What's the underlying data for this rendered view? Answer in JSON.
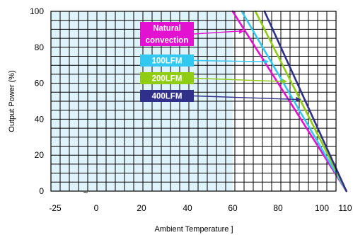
{
  "chart_data": {
    "type": "line",
    "xlabel": "Ambient Temperature  ]",
    "ylabel": "Output Power  (%)",
    "x_ticks": [
      "-25",
      "0",
      "20",
      "40",
      "60",
      "80",
      "100",
      "110"
    ],
    "y_ticks": [
      "0",
      "20",
      "40",
      "60",
      "80",
      "100"
    ],
    "x_break_mark": "~",
    "xlim": [
      -25,
      110
    ],
    "ylim": [
      0,
      100
    ],
    "grid": true,
    "shaded_region_x": [
      -25,
      60
    ],
    "shaded_color": "#dff3fc",
    "series": [
      {
        "name": "Natural convection",
        "color": "#e312d0",
        "x": [
          60,
          110
        ],
        "y": [
          100,
          0
        ]
      },
      {
        "name": "100LFM",
        "color": "#32c8f0",
        "x": [
          64,
          110
        ],
        "y": [
          100,
          0
        ]
      },
      {
        "name": "200LFM",
        "color": "#90cc14",
        "x": [
          70,
          110
        ],
        "y": [
          100,
          0
        ]
      },
      {
        "name": "400LFM",
        "color": "#30308a",
        "x": [
          74,
          110
        ],
        "y": [
          100,
          0
        ]
      }
    ],
    "annotations": [
      {
        "series_index": 0,
        "label_lines": [
          "Natural",
          "convection"
        ],
        "arrow_to": [
          65,
          89
        ]
      },
      {
        "series_index": 1,
        "label_lines": [
          "100LFM"
        ],
        "arrow_to": [
          76,
          72
        ]
      },
      {
        "series_index": 2,
        "label_lines": [
          "200LFM"
        ],
        "arrow_to": [
          84,
          61
        ]
      },
      {
        "series_index": 3,
        "label_lines": [
          "400LFM"
        ],
        "arrow_to": [
          90,
          51
        ]
      }
    ]
  }
}
